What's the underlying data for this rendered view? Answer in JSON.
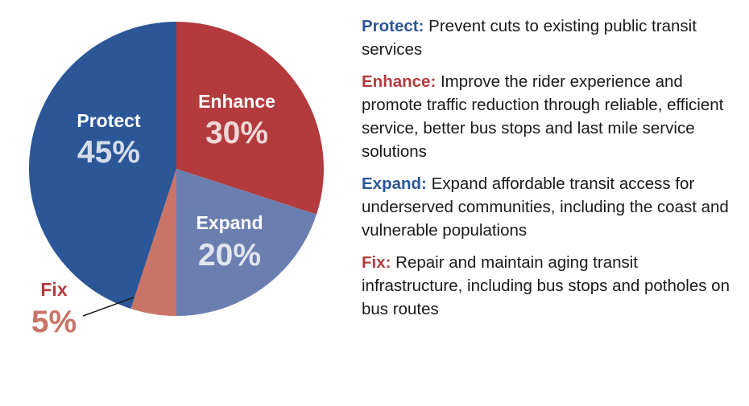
{
  "colors": {
    "protect": "#2b5697",
    "enhance": "#b33a3d",
    "expand": "#6a7fb0",
    "fix": "#ca7468",
    "text": "#1a1a1a",
    "label_on_slice": "#ffffff"
  },
  "chart_data": {
    "type": "pie",
    "unit": "%",
    "slices": [
      {
        "name": "Enhance",
        "value": 30,
        "label": "30%",
        "color": "#b33a3d"
      },
      {
        "name": "Expand",
        "value": 20,
        "label": "20%",
        "color": "#6a7fb0"
      },
      {
        "name": "Fix",
        "value": 5,
        "label": "5%",
        "color": "#ca7468"
      },
      {
        "name": "Protect",
        "value": 45,
        "label": "45%",
        "color": "#2b5697"
      }
    ]
  },
  "legend": [
    {
      "term": "Protect:",
      "description": "Prevent cuts to existing public transit services",
      "color": "#2b5697"
    },
    {
      "term": "Enhance:",
      "description": "Improve the rider experience and promote traffic reduction through reliable, efficient service, better bus stops and last mile service solutions",
      "color": "#b33a3d"
    },
    {
      "term": "Expand:",
      "description": "Expand affordable transit access for underserved communities, including the coast and vulnerable populations",
      "color": "#2b5697"
    },
    {
      "term": "Fix:",
      "description": "Repair and maintain aging transit infrastructure, including bus stops and potholes on bus routes",
      "color": "#b33a3d"
    }
  ]
}
